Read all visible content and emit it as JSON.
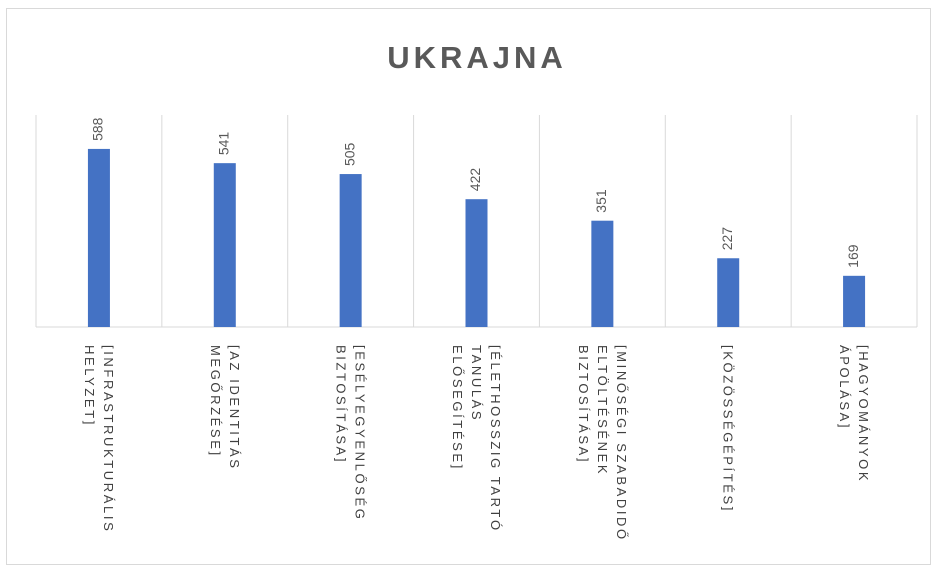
{
  "chart_data": {
    "type": "bar",
    "title": "UKRAJNA",
    "categories": [
      "[INFRASTRUKTURÁLIS HELYZET]",
      "[AZ IDENTITÁS MEGŐRZÉSE]",
      "[ESÉLYEGYENLŐSÉG BIZTOSÍTÁSA]",
      "[ÉLETHOSSZIG TARTÓ TANULÁS ELŐSEGÍTÉSE]",
      "[MINŐSÉGI SZABADIDŐ ELTÖLTÉSÉNEK BIZTOSÍTÁSA]",
      "[KÖZÖSSÉGÉPÍTÉS]",
      "[HAGYOMÁNYOK ÁPOLÁSA]"
    ],
    "values": [
      588,
      541,
      505,
      422,
      351,
      227,
      169
    ],
    "color": "#4472c4",
    "ylim": [
      0,
      700
    ]
  }
}
